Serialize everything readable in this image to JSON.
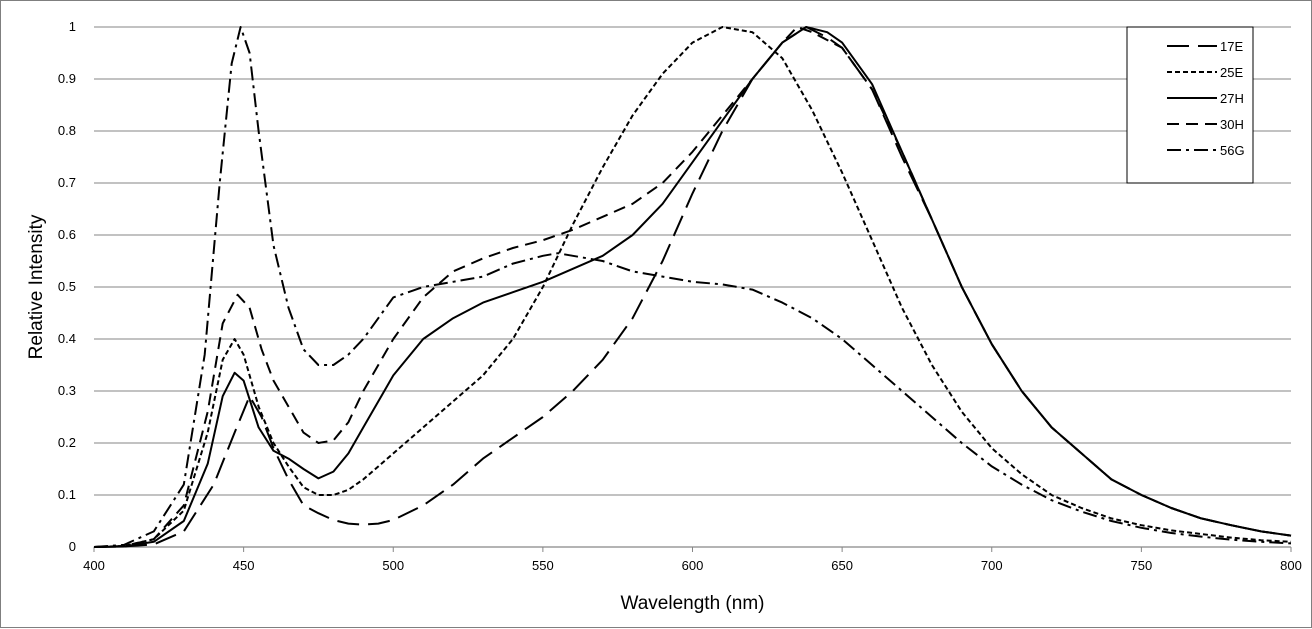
{
  "chart_data": {
    "type": "line",
    "title": "",
    "xlabel": "Wavelength (nm)",
    "ylabel": "Relative Intensity",
    "xlim": [
      400,
      800
    ],
    "ylim": [
      0,
      1
    ],
    "x_ticks": [
      400,
      450,
      500,
      550,
      600,
      650,
      700,
      750,
      800
    ],
    "y_ticks": [
      0,
      0.1,
      0.2,
      0.3,
      0.4,
      0.5,
      0.6,
      0.7,
      0.8,
      0.9,
      1
    ],
    "x_tick_labels": [
      "400",
      "450",
      "500",
      "550",
      "600",
      "650",
      "700",
      "750",
      "800"
    ],
    "y_tick_labels": [
      "0",
      "0.1",
      "0.2",
      "0.3",
      "0.4",
      "0.5",
      "0.6",
      "0.7",
      "0.8",
      "0.9",
      "1"
    ],
    "grid": "horizontal",
    "legend_position": "top-right",
    "line_color": "#000000",
    "grid_color": "#868686",
    "series": [
      {
        "name": "17E",
        "dash": "long-dash",
        "points": [
          [
            400,
            0
          ],
          [
            410,
            0.001
          ],
          [
            420,
            0.005
          ],
          [
            430,
            0.03
          ],
          [
            440,
            0.12
          ],
          [
            447,
            0.22
          ],
          [
            452,
            0.29
          ],
          [
            456,
            0.25
          ],
          [
            460,
            0.19
          ],
          [
            465,
            0.13
          ],
          [
            470,
            0.08
          ],
          [
            475,
            0.065
          ],
          [
            480,
            0.052
          ],
          [
            485,
            0.045
          ],
          [
            490,
            0.043
          ],
          [
            495,
            0.045
          ],
          [
            500,
            0.052
          ],
          [
            510,
            0.08
          ],
          [
            520,
            0.12
          ],
          [
            530,
            0.17
          ],
          [
            540,
            0.21
          ],
          [
            550,
            0.25
          ],
          [
            560,
            0.3
          ],
          [
            570,
            0.36
          ],
          [
            580,
            0.44
          ],
          [
            590,
            0.55
          ],
          [
            600,
            0.68
          ],
          [
            610,
            0.8
          ],
          [
            620,
            0.9
          ],
          [
            630,
            0.97
          ],
          [
            638,
            1.0
          ],
          [
            645,
            0.98
          ],
          [
            650,
            0.96
          ],
          [
            660,
            0.88
          ],
          [
            670,
            0.75
          ],
          [
            680,
            0.63
          ],
          [
            690,
            0.5
          ],
          [
            700,
            0.39
          ],
          [
            710,
            0.3
          ],
          [
            720,
            0.23
          ],
          [
            730,
            0.18
          ],
          [
            740,
            0.13
          ],
          [
            750,
            0.1
          ],
          [
            760,
            0.075
          ],
          [
            770,
            0.055
          ],
          [
            780,
            0.042
          ],
          [
            790,
            0.03
          ],
          [
            800,
            0.022
          ]
        ]
      },
      {
        "name": "25E",
        "dash": "short-dash",
        "points": [
          [
            400,
            0
          ],
          [
            410,
            0.002
          ],
          [
            420,
            0.015
          ],
          [
            430,
            0.07
          ],
          [
            438,
            0.22
          ],
          [
            443,
            0.36
          ],
          [
            447,
            0.4
          ],
          [
            450,
            0.37
          ],
          [
            455,
            0.27
          ],
          [
            460,
            0.2
          ],
          [
            465,
            0.155
          ],
          [
            470,
            0.115
          ],
          [
            475,
            0.1
          ],
          [
            480,
            0.1
          ],
          [
            485,
            0.11
          ],
          [
            490,
            0.13
          ],
          [
            500,
            0.18
          ],
          [
            510,
            0.23
          ],
          [
            520,
            0.28
          ],
          [
            530,
            0.33
          ],
          [
            540,
            0.4
          ],
          [
            550,
            0.5
          ],
          [
            560,
            0.62
          ],
          [
            570,
            0.73
          ],
          [
            580,
            0.83
          ],
          [
            590,
            0.91
          ],
          [
            600,
            0.97
          ],
          [
            610,
            1.0
          ],
          [
            620,
            0.99
          ],
          [
            630,
            0.94
          ],
          [
            640,
            0.84
          ],
          [
            650,
            0.72
          ],
          [
            660,
            0.59
          ],
          [
            670,
            0.46
          ],
          [
            680,
            0.35
          ],
          [
            690,
            0.26
          ],
          [
            700,
            0.19
          ],
          [
            710,
            0.14
          ],
          [
            720,
            0.1
          ],
          [
            730,
            0.075
          ],
          [
            740,
            0.055
          ],
          [
            750,
            0.042
          ],
          [
            760,
            0.032
          ],
          [
            770,
            0.025
          ],
          [
            780,
            0.018
          ],
          [
            790,
            0.013
          ],
          [
            800,
            0.01
          ]
        ]
      },
      {
        "name": "27H",
        "dash": "solid",
        "points": [
          [
            400,
            0
          ],
          [
            410,
            0.001
          ],
          [
            420,
            0.01
          ],
          [
            430,
            0.05
          ],
          [
            438,
            0.16
          ],
          [
            443,
            0.29
          ],
          [
            447,
            0.335
          ],
          [
            450,
            0.32
          ],
          [
            455,
            0.23
          ],
          [
            460,
            0.185
          ],
          [
            465,
            0.17
          ],
          [
            470,
            0.15
          ],
          [
            475,
            0.132
          ],
          [
            480,
            0.145
          ],
          [
            485,
            0.18
          ],
          [
            490,
            0.23
          ],
          [
            500,
            0.33
          ],
          [
            510,
            0.4
          ],
          [
            520,
            0.44
          ],
          [
            530,
            0.47
          ],
          [
            540,
            0.49
          ],
          [
            550,
            0.51
          ],
          [
            560,
            0.535
          ],
          [
            570,
            0.56
          ],
          [
            580,
            0.6
          ],
          [
            590,
            0.66
          ],
          [
            600,
            0.74
          ],
          [
            610,
            0.82
          ],
          [
            620,
            0.9
          ],
          [
            630,
            0.97
          ],
          [
            638,
            1.0
          ],
          [
            645,
            0.99
          ],
          [
            650,
            0.97
          ],
          [
            660,
            0.89
          ],
          [
            670,
            0.76
          ],
          [
            680,
            0.63
          ],
          [
            690,
            0.5
          ],
          [
            700,
            0.39
          ],
          [
            710,
            0.3
          ],
          [
            720,
            0.23
          ],
          [
            730,
            0.18
          ],
          [
            740,
            0.13
          ],
          [
            750,
            0.1
          ],
          [
            760,
            0.075
          ],
          [
            770,
            0.055
          ],
          [
            780,
            0.042
          ],
          [
            790,
            0.03
          ],
          [
            800,
            0.022
          ]
        ]
      },
      {
        "name": "30H",
        "dash": "dash",
        "points": [
          [
            400,
            0
          ],
          [
            410,
            0.002
          ],
          [
            420,
            0.015
          ],
          [
            430,
            0.08
          ],
          [
            438,
            0.26
          ],
          [
            443,
            0.43
          ],
          [
            448,
            0.485
          ],
          [
            452,
            0.46
          ],
          [
            456,
            0.38
          ],
          [
            460,
            0.32
          ],
          [
            465,
            0.27
          ],
          [
            470,
            0.22
          ],
          [
            475,
            0.2
          ],
          [
            480,
            0.205
          ],
          [
            485,
            0.24
          ],
          [
            490,
            0.3
          ],
          [
            500,
            0.4
          ],
          [
            510,
            0.48
          ],
          [
            520,
            0.53
          ],
          [
            530,
            0.555
          ],
          [
            540,
            0.575
          ],
          [
            550,
            0.59
          ],
          [
            560,
            0.61
          ],
          [
            570,
            0.635
          ],
          [
            580,
            0.66
          ],
          [
            590,
            0.7
          ],
          [
            600,
            0.76
          ],
          [
            610,
            0.83
          ],
          [
            620,
            0.9
          ],
          [
            630,
            0.97
          ],
          [
            635,
            1.0
          ],
          [
            640,
            0.99
          ],
          [
            650,
            0.96
          ],
          [
            660,
            0.88
          ],
          [
            670,
            0.76
          ],
          [
            680,
            0.63
          ],
          [
            690,
            0.5
          ],
          [
            700,
            0.39
          ],
          [
            710,
            0.3
          ],
          [
            720,
            0.23
          ],
          [
            730,
            0.18
          ],
          [
            740,
            0.13
          ],
          [
            750,
            0.1
          ],
          [
            760,
            0.075
          ],
          [
            770,
            0.055
          ],
          [
            780,
            0.042
          ],
          [
            790,
            0.03
          ],
          [
            800,
            0.022
          ]
        ]
      },
      {
        "name": "56G",
        "dash": "dash-dot",
        "points": [
          [
            400,
            0
          ],
          [
            410,
            0.004
          ],
          [
            420,
            0.03
          ],
          [
            430,
            0.12
          ],
          [
            437,
            0.37
          ],
          [
            442,
            0.7
          ],
          [
            446,
            0.93
          ],
          [
            449,
            1.0
          ],
          [
            452,
            0.95
          ],
          [
            455,
            0.8
          ],
          [
            460,
            0.58
          ],
          [
            465,
            0.46
          ],
          [
            470,
            0.38
          ],
          [
            475,
            0.35
          ],
          [
            480,
            0.35
          ],
          [
            485,
            0.37
          ],
          [
            490,
            0.4
          ],
          [
            495,
            0.44
          ],
          [
            500,
            0.48
          ],
          [
            510,
            0.5
          ],
          [
            520,
            0.51
          ],
          [
            530,
            0.52
          ],
          [
            540,
            0.545
          ],
          [
            550,
            0.56
          ],
          [
            555,
            0.565
          ],
          [
            560,
            0.56
          ],
          [
            570,
            0.55
          ],
          [
            580,
            0.53
          ],
          [
            590,
            0.52
          ],
          [
            600,
            0.51
          ],
          [
            610,
            0.505
          ],
          [
            620,
            0.495
          ],
          [
            630,
            0.47
          ],
          [
            640,
            0.44
          ],
          [
            650,
            0.4
          ],
          [
            660,
            0.35
          ],
          [
            670,
            0.3
          ],
          [
            680,
            0.25
          ],
          [
            690,
            0.2
          ],
          [
            700,
            0.155
          ],
          [
            710,
            0.12
          ],
          [
            720,
            0.09
          ],
          [
            730,
            0.068
          ],
          [
            740,
            0.05
          ],
          [
            750,
            0.037
          ],
          [
            760,
            0.027
          ],
          [
            770,
            0.02
          ],
          [
            780,
            0.014
          ],
          [
            790,
            0.01
          ],
          [
            800,
            0.007
          ]
        ]
      }
    ]
  }
}
